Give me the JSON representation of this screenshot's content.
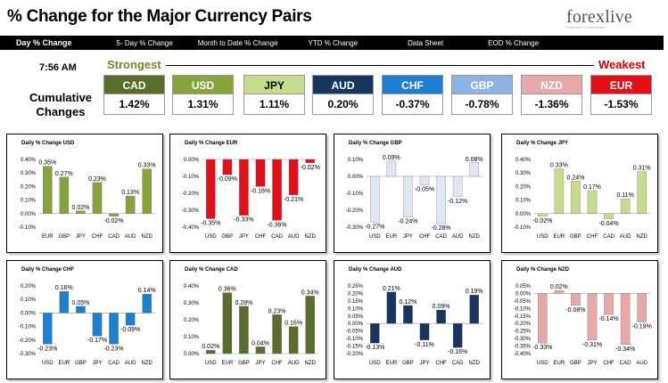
{
  "header": {
    "title": "% Change for the Major Currency Pairs",
    "logo_text": "forexlive",
    "logo_tag": "Financial Commentary"
  },
  "tabs": [
    "Day % Change",
    "5- Day % Change",
    "Month to Date % Change",
    "YTD % Change",
    "Data Sheet",
    "EOD % Change"
  ],
  "summary": {
    "time": "7:56 AM",
    "strongest_label": "Strongest",
    "weakest_label": "Weakest",
    "cumulative_label_line1": "Cumulative",
    "cumulative_label_line2": "Changes",
    "currencies": [
      {
        "name": "CAD",
        "value": "1.42%",
        "color": "#5a6e2b"
      },
      {
        "name": "USD",
        "value": "1.31%",
        "color": "#86a33c"
      },
      {
        "name": "JPY",
        "value": "1.11%",
        "color": "#c5dc8c"
      },
      {
        "name": "AUD",
        "value": "0.20%",
        "color": "#17355e"
      },
      {
        "name": "CHF",
        "value": "-0.37%",
        "color": "#1d7fd1"
      },
      {
        "name": "GBP",
        "value": "-0.78%",
        "color": "#8db2e4"
      },
      {
        "name": "NZD",
        "value": "-1.36%",
        "color": "#e6a9a7"
      },
      {
        "name": "EUR",
        "value": "-1.53%",
        "color": "#e3101a"
      }
    ]
  },
  "chart_data": [
    {
      "type": "bar",
      "title": "Daily % Change USD",
      "categories": [
        "EUR",
        "GBP",
        "JPY",
        "CHF",
        "CAD",
        "AUD",
        "NZD"
      ],
      "values": [
        0.35,
        0.27,
        0.02,
        0.23,
        -0.02,
        0.13,
        0.33
      ],
      "labels": [
        "0.35%",
        "0.27%",
        "0.02%",
        "0.23%",
        "-0.02%",
        "0.13%",
        "0.33%"
      ],
      "ylim": [
        -0.1,
        0.4
      ],
      "yticks": [
        "-0.10%",
        "0.00%",
        "0.10%",
        "0.20%",
        "0.30%",
        "0.40%"
      ],
      "color": "#86a33c"
    },
    {
      "type": "bar",
      "title": "Daily % Change EUR",
      "categories": [
        "USD",
        "GBP",
        "JPY",
        "CHF",
        "CAD",
        "AUD",
        "NZD"
      ],
      "values": [
        -0.35,
        -0.09,
        -0.33,
        -0.16,
        -0.36,
        -0.21,
        -0.02
      ],
      "labels": [
        "-0.35%",
        "-0.09%",
        "-0.33%",
        "-0.16%",
        "-0.36%",
        "-0.21%",
        "-0.02%"
      ],
      "ylim": [
        -0.4,
        0.0
      ],
      "yticks": [
        "-0.40%",
        "-0.30%",
        "-0.20%",
        "-0.10%",
        "0.00%"
      ],
      "color": "#e3101a"
    },
    {
      "type": "bar",
      "title": "Daily % Change GBP",
      "categories": [
        "USD",
        "EUR",
        "JPY",
        "CHF",
        "CAD",
        "AUD",
        "NZD"
      ],
      "values": [
        -0.27,
        0.09,
        -0.24,
        -0.05,
        -0.28,
        -0.12,
        0.08
      ],
      "labels": [
        "-0.27%",
        "0.09%",
        "-0.24%",
        "-0.05%",
        "-0.28%",
        "-0.12%",
        "0.08%"
      ],
      "ylim": [
        -0.3,
        0.1
      ],
      "yticks": [
        "-0.30%",
        "-0.20%",
        "-0.10%",
        "0.00%",
        "0.10%"
      ],
      "color": "#dfe7f2"
    },
    {
      "type": "bar",
      "title": "Daily % Change JPY",
      "categories": [
        "USD",
        "EUR",
        "GBP",
        "CHF",
        "CAD",
        "AUD",
        "NZD"
      ],
      "values": [
        -0.02,
        0.33,
        0.24,
        0.17,
        -0.04,
        0.11,
        0.31
      ],
      "labels": [
        "-0.02%",
        "0.33%",
        "0.24%",
        "0.17%",
        "-0.04%",
        "0.11%",
        "0.31%"
      ],
      "ylim": [
        -0.1,
        0.4
      ],
      "yticks": [
        "-0.10%",
        "0.00%",
        "0.10%",
        "0.20%",
        "0.30%",
        "0.40%"
      ],
      "color": "#c5dc8c"
    },
    {
      "type": "bar",
      "title": "Daily % Change CHF",
      "categories": [
        "USD",
        "EUR",
        "GBP",
        "JPY",
        "CAD",
        "AUD",
        "NZD"
      ],
      "values": [
        -0.23,
        0.16,
        0.05,
        -0.17,
        -0.23,
        -0.09,
        0.14
      ],
      "labels": [
        "-0.23%",
        "0.16%",
        "0.05%",
        "-0.17%",
        "-0.23%",
        "-0.09%",
        "0.14%"
      ],
      "ylim": [
        -0.3,
        0.2
      ],
      "yticks": [
        "-0.30%",
        "-0.20%",
        "-0.10%",
        "0.00%",
        "0.10%",
        "0.20%"
      ],
      "color": "#1d7fd1"
    },
    {
      "type": "bar",
      "title": "Daily % Change CAD",
      "categories": [
        "USD",
        "EUR",
        "GBP",
        "JPY",
        "CHF",
        "AUD",
        "NZD"
      ],
      "values": [
        0.02,
        0.36,
        0.28,
        0.04,
        0.23,
        0.16,
        0.34
      ],
      "labels": [
        "0.02%",
        "0.36%",
        "0.28%",
        "0.04%",
        "0.23%",
        "0.16%",
        "0.34%"
      ],
      "ylim": [
        0.0,
        0.4
      ],
      "yticks": [
        "0.00%",
        "0.10%",
        "0.20%",
        "0.30%",
        "0.40%"
      ],
      "color": "#5a6e2b"
    },
    {
      "type": "bar",
      "title": "Daily % Change AUD",
      "categories": [
        "USD",
        "EUR",
        "GBP",
        "JPY",
        "CHF",
        "CAD",
        "NZD"
      ],
      "values": [
        -0.13,
        0.21,
        0.12,
        -0.11,
        0.09,
        -0.16,
        0.19
      ],
      "labels": [
        "-0.13%",
        "0.21%",
        "0.12%",
        "-0.11%",
        "0.09%",
        "-0.16%",
        "0.19%"
      ],
      "ylim": [
        -0.2,
        0.25
      ],
      "yticks": [
        "-0.20%",
        "-0.15%",
        "-0.10%",
        "-0.05%",
        "0.00%",
        "0.05%",
        "0.10%",
        "0.15%",
        "0.20%",
        "0.25%"
      ],
      "color": "#17355e"
    },
    {
      "type": "bar",
      "title": "Daily % Change NZD",
      "categories": [
        "USD",
        "EUR",
        "GBP",
        "JPY",
        "CHF",
        "CAD",
        "AUD"
      ],
      "values": [
        -0.33,
        0.02,
        -0.08,
        -0.31,
        -0.14,
        -0.34,
        -0.19
      ],
      "labels": [
        "-0.33%",
        "0.02%",
        "-0.08%",
        "-0.31%",
        "-0.14%",
        "-0.34%",
        "-0.19%"
      ],
      "ylim": [
        -0.4,
        0.05
      ],
      "yticks": [
        "-0.40%",
        "-0.35%",
        "-0.30%",
        "-0.25%",
        "-0.20%",
        "-0.15%",
        "-0.10%",
        "-0.05%",
        "0.00%",
        "0.05%"
      ],
      "color": "#e6a9a7"
    }
  ]
}
